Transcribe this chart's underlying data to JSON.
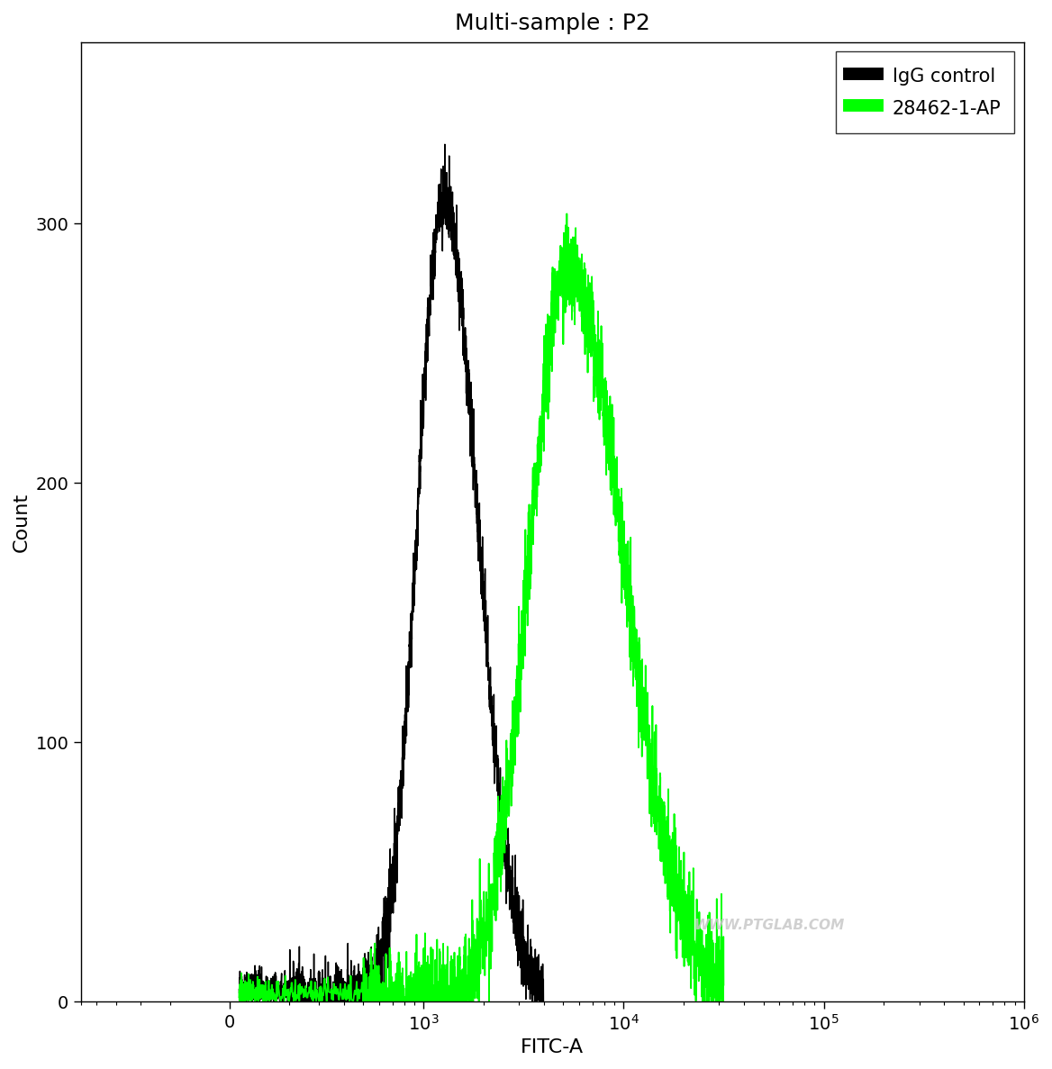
{
  "title": "Multi-sample : P2",
  "xlabel": "FITC-A",
  "ylabel": "Count",
  "ylim": [
    0,
    370
  ],
  "yticks": [
    0,
    100,
    200,
    300
  ],
  "background_color": "#ffffff",
  "plot_bg_color": "#ffffff",
  "igg_color": "#000000",
  "ab_color": "#00ff00",
  "legend_labels": [
    "IgG control",
    "28462-1-AP"
  ],
  "watermark": "WWW.PTGLAB.COM",
  "igg_peak_log": 3.1,
  "igg_peak_count": 310,
  "ab_peak_log": 3.72,
  "ab_peak_count": 283,
  "title_fontsize": 18,
  "axis_label_fontsize": 16,
  "tick_fontsize": 14,
  "legend_fontsize": 15,
  "linthresh": 300,
  "linscale": 0.4
}
